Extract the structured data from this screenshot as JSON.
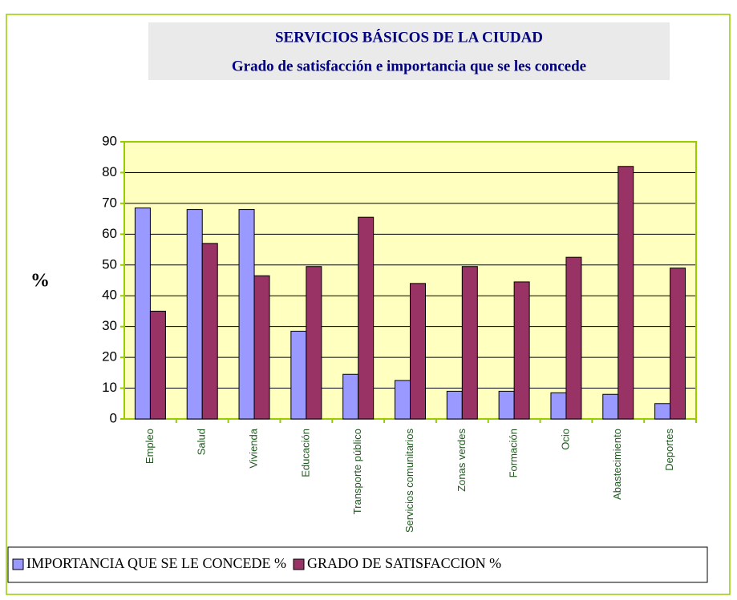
{
  "chart_data": {
    "type": "bar",
    "title": "SERVICIOS BÁSICOS DE LA CIUDAD",
    "subtitle": "Grado de satisfacción e importancia que se les concede",
    "y_label": "%",
    "categories": [
      "Empleo",
      "Salud",
      "Vivienda",
      "Educación",
      "Transporte público",
      "Servicios comunitarios",
      "Zonas verdes",
      "Formación",
      "Ocio",
      "Abastecimiento",
      "Deportes"
    ],
    "series": [
      {
        "name": "IMPORTANCIA QUE SE LE CONCEDE %",
        "color": "#9999ff",
        "values": [
          68.5,
          68,
          68,
          28.5,
          14.5,
          12.5,
          9,
          9,
          8.5,
          8,
          5
        ]
      },
      {
        "name": "GRADO DE SATISFACCION %",
        "color": "#993366",
        "values": [
          35,
          57,
          46.5,
          49.5,
          65.5,
          44,
          49.5,
          44.5,
          52.5,
          82,
          49
        ]
      }
    ],
    "ylim": [
      0,
      90
    ],
    "yticks": [
      0,
      10,
      20,
      30,
      40,
      50,
      60,
      70,
      80,
      90
    ],
    "grid": true,
    "legend": "bottom"
  }
}
